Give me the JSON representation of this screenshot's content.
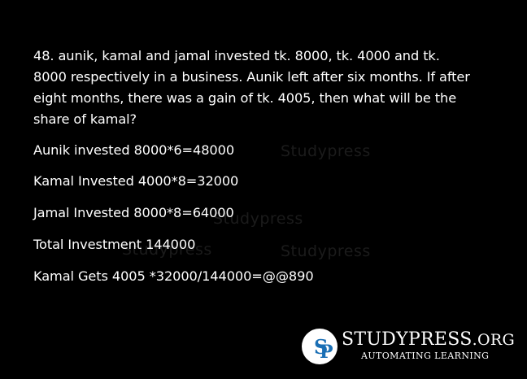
{
  "question": "48. aunik, kamal and jamal invested tk. 8000, tk. 4000 and tk. 8000 respectively in a business. Aunik left after six months. If after eight months, there was a gain of tk. 4005, then what will be the share of kamal?",
  "steps": [
    "Aunik invested 8000*6=48000",
    "Kamal Invested 4000*8=32000",
    "Jamal Invested 8000*8=64000",
    "Total Investment 144000",
    "Kamal Gets 4005 *32000/144000=@@890"
  ],
  "watermark": "Studypress",
  "logo": {
    "name_main": "STUDYPRESS",
    "name_suffix": ".ORG",
    "tagline": "AUTOMATING LEARNING",
    "badge_letters": "SP",
    "badge_color": "#1a6fb5"
  }
}
